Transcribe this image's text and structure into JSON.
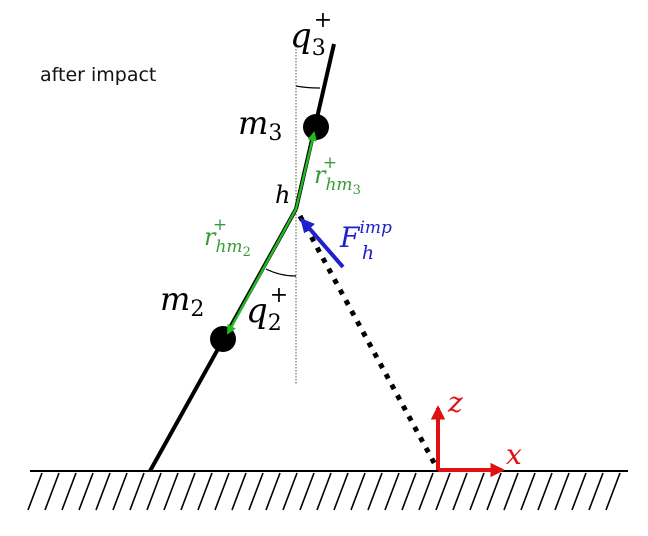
{
  "caption": "after impact",
  "labels": {
    "m3": {
      "base": "m",
      "sub": "3"
    },
    "m2": {
      "base": "m",
      "sub": "2"
    },
    "q3": {
      "base": "q",
      "sub": "3",
      "sup": "+"
    },
    "q2": {
      "base": "q",
      "sub": "2",
      "sup": "+"
    },
    "h": "h",
    "r_hm3": {
      "base": "r",
      "sub": "hm",
      "subsub": "3",
      "sup": "+"
    },
    "r_hm2": {
      "base": "r",
      "sub": "hm",
      "subsub": "2",
      "sup": "+"
    },
    "force": {
      "base": "F",
      "sub": "h",
      "sup": "imp"
    },
    "axis_z": "z",
    "axis_x": "x"
  },
  "colors": {
    "link": "#000000",
    "vector_green": "#22bb22",
    "vector_green_text": "#3a9a3a",
    "force": "#2020cc",
    "axis": "#dd1111",
    "ground": "#000000"
  }
}
